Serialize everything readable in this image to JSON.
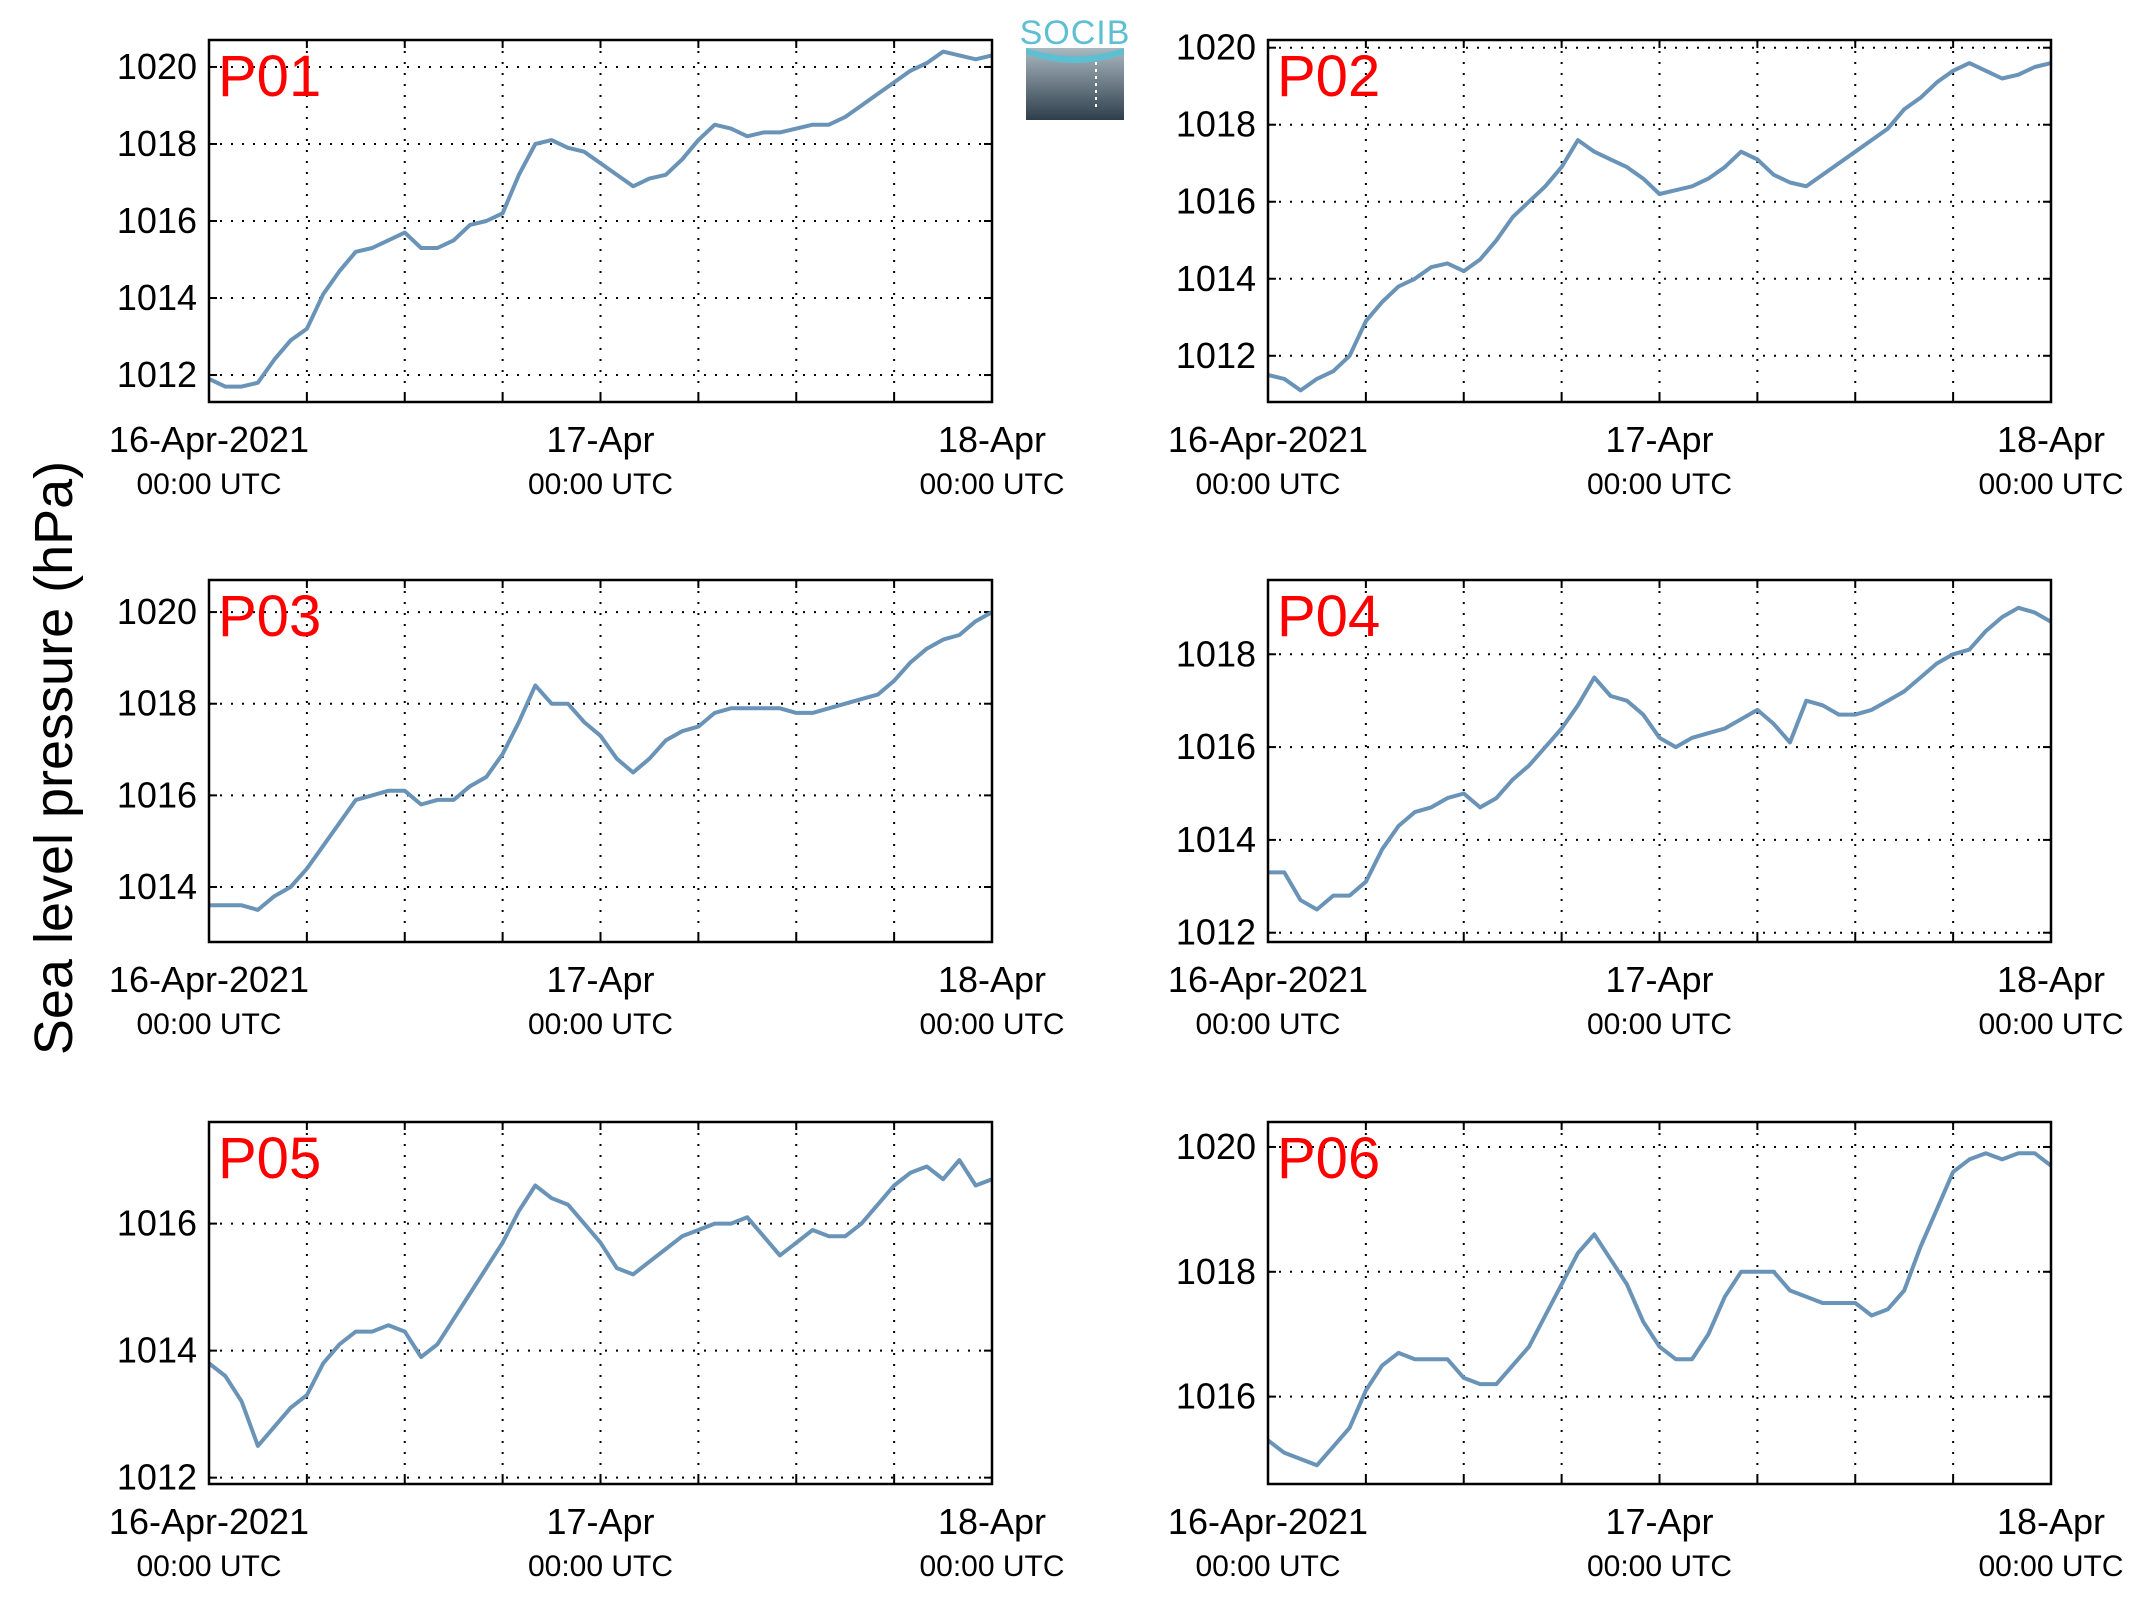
{
  "figure": {
    "ylabel": "Sea level pressure (hPa)",
    "logo_text": "SOCIB",
    "line_color": "#6a93b8",
    "panel_label_color": "#ff0000"
  },
  "x_tick_labels": [
    {
      "main": "16-Apr-2021",
      "sub": "00:00 UTC"
    },
    {
      "main": "17-Apr",
      "sub": "00:00 UTC"
    },
    {
      "main": "18-Apr",
      "sub": "00:00 UTC"
    }
  ],
  "chart_data": [
    {
      "type": "line",
      "label": "P01",
      "xlim_hours": [
        0,
        48
      ],
      "ylim": [
        1011.3,
        1020.7
      ],
      "yticks": [
        1012,
        1014,
        1016,
        1018,
        1020
      ],
      "grid": "dotted",
      "x_hours": [
        0,
        1,
        2,
        3,
        4,
        5,
        6,
        7,
        8,
        9,
        10,
        11,
        12,
        13,
        14,
        15,
        16,
        17,
        18,
        19,
        20,
        21,
        22,
        23,
        24,
        25,
        26,
        27,
        28,
        29,
        30,
        31,
        32,
        33,
        34,
        35,
        36,
        37,
        38,
        39,
        40,
        41,
        42,
        43,
        44,
        45,
        46,
        47,
        48
      ],
      "values": [
        1011.9,
        1011.7,
        1011.7,
        1011.8,
        1012.4,
        1012.9,
        1013.2,
        1014.1,
        1014.7,
        1015.2,
        1015.3,
        1015.5,
        1015.7,
        1015.3,
        1015.3,
        1015.5,
        1015.9,
        1016.0,
        1016.2,
        1017.2,
        1018.0,
        1018.1,
        1017.9,
        1017.8,
        1017.5,
        1017.2,
        1016.9,
        1017.1,
        1017.2,
        1017.6,
        1018.1,
        1018.5,
        1018.4,
        1018.2,
        1018.3,
        1018.3,
        1018.4,
        1018.5,
        1018.5,
        1018.7,
        1019.0,
        1019.3,
        1019.6,
        1019.9,
        1020.1,
        1020.4,
        1020.3,
        1020.2,
        1020.3
      ]
    },
    {
      "type": "line",
      "label": "P02",
      "xlim_hours": [
        0,
        48
      ],
      "ylim": [
        1010.8,
        1020.2
      ],
      "yticks": [
        1012,
        1014,
        1016,
        1018,
        1020
      ],
      "grid": "dotted",
      "x_hours": [
        0,
        1,
        2,
        3,
        4,
        5,
        6,
        7,
        8,
        9,
        10,
        11,
        12,
        13,
        14,
        15,
        16,
        17,
        18,
        19,
        20,
        21,
        22,
        23,
        24,
        25,
        26,
        27,
        28,
        29,
        30,
        31,
        32,
        33,
        34,
        35,
        36,
        37,
        38,
        39,
        40,
        41,
        42,
        43,
        44,
        45,
        46,
        47,
        48
      ],
      "values": [
        1011.5,
        1011.4,
        1011.1,
        1011.4,
        1011.6,
        1012.0,
        1012.9,
        1013.4,
        1013.8,
        1014.0,
        1014.3,
        1014.4,
        1014.2,
        1014.5,
        1015.0,
        1015.6,
        1016.0,
        1016.4,
        1016.9,
        1017.6,
        1017.3,
        1017.1,
        1016.9,
        1016.6,
        1016.2,
        1016.3,
        1016.4,
        1016.6,
        1016.9,
        1017.3,
        1017.1,
        1016.7,
        1016.5,
        1016.4,
        1016.7,
        1017.0,
        1017.3,
        1017.6,
        1017.9,
        1018.4,
        1018.7,
        1019.1,
        1019.4,
        1019.6,
        1019.4,
        1019.2,
        1019.3,
        1019.5,
        1019.6
      ]
    },
    {
      "type": "line",
      "label": "P03",
      "xlim_hours": [
        0,
        48
      ],
      "ylim": [
        1012.8,
        1020.7
      ],
      "yticks": [
        1014,
        1016,
        1018,
        1020
      ],
      "grid": "dotted",
      "x_hours": [
        0,
        1,
        2,
        3,
        4,
        5,
        6,
        7,
        8,
        9,
        10,
        11,
        12,
        13,
        14,
        15,
        16,
        17,
        18,
        19,
        20,
        21,
        22,
        23,
        24,
        25,
        26,
        27,
        28,
        29,
        30,
        31,
        32,
        33,
        34,
        35,
        36,
        37,
        38,
        39,
        40,
        41,
        42,
        43,
        44,
        45,
        46,
        47,
        48
      ],
      "values": [
        1013.6,
        1013.6,
        1013.6,
        1013.5,
        1013.8,
        1014.0,
        1014.4,
        1014.9,
        1015.4,
        1015.9,
        1016.0,
        1016.1,
        1016.1,
        1015.8,
        1015.9,
        1015.9,
        1016.2,
        1016.4,
        1016.9,
        1017.6,
        1018.4,
        1018.0,
        1018.0,
        1017.6,
        1017.3,
        1016.8,
        1016.5,
        1016.8,
        1017.2,
        1017.4,
        1017.5,
        1017.8,
        1017.9,
        1017.9,
        1017.9,
        1017.9,
        1017.8,
        1017.8,
        1017.9,
        1018.0,
        1018.1,
        1018.2,
        1018.5,
        1018.9,
        1019.2,
        1019.4,
        1019.5,
        1019.8,
        1020.0
      ]
    },
    {
      "type": "line",
      "label": "P04",
      "xlim_hours": [
        0,
        48
      ],
      "ylim": [
        1011.8,
        1019.6
      ],
      "yticks": [
        1012,
        1014,
        1016,
        1018
      ],
      "grid": "dotted",
      "x_hours": [
        0,
        1,
        2,
        3,
        4,
        5,
        6,
        7,
        8,
        9,
        10,
        11,
        12,
        13,
        14,
        15,
        16,
        17,
        18,
        19,
        20,
        21,
        22,
        23,
        24,
        25,
        26,
        27,
        28,
        29,
        30,
        31,
        32,
        33,
        34,
        35,
        36,
        37,
        38,
        39,
        40,
        41,
        42,
        43,
        44,
        45,
        46,
        47,
        48
      ],
      "values": [
        1013.3,
        1013.3,
        1012.7,
        1012.5,
        1012.8,
        1012.8,
        1013.1,
        1013.8,
        1014.3,
        1014.6,
        1014.7,
        1014.9,
        1015.0,
        1014.7,
        1014.9,
        1015.3,
        1015.6,
        1016.0,
        1016.4,
        1016.9,
        1017.5,
        1017.1,
        1017.0,
        1016.7,
        1016.2,
        1016.0,
        1016.2,
        1016.3,
        1016.4,
        1016.6,
        1016.8,
        1016.5,
        1016.1,
        1017.0,
        1016.9,
        1016.7,
        1016.7,
        1016.8,
        1017.0,
        1017.2,
        1017.5,
        1017.8,
        1018.0,
        1018.1,
        1018.5,
        1018.8,
        1019.0,
        1018.9,
        1018.7
      ]
    },
    {
      "type": "line",
      "label": "P05",
      "xlim_hours": [
        0,
        48
      ],
      "ylim": [
        1011.9,
        1017.6
      ],
      "yticks": [
        1012,
        1014,
        1016
      ],
      "grid": "dotted",
      "x_hours": [
        0,
        1,
        2,
        3,
        4,
        5,
        6,
        7,
        8,
        9,
        10,
        11,
        12,
        13,
        14,
        15,
        16,
        17,
        18,
        19,
        20,
        21,
        22,
        23,
        24,
        25,
        26,
        27,
        28,
        29,
        30,
        31,
        32,
        33,
        34,
        35,
        36,
        37,
        38,
        39,
        40,
        41,
        42,
        43,
        44,
        45,
        46,
        47,
        48
      ],
      "values": [
        1013.8,
        1013.6,
        1013.2,
        1012.5,
        1012.8,
        1013.1,
        1013.3,
        1013.8,
        1014.1,
        1014.3,
        1014.3,
        1014.4,
        1014.3,
        1013.9,
        1014.1,
        1014.5,
        1014.9,
        1015.3,
        1015.7,
        1016.2,
        1016.6,
        1016.4,
        1016.3,
        1016.0,
        1015.7,
        1015.3,
        1015.2,
        1015.4,
        1015.6,
        1015.8,
        1015.9,
        1016.0,
        1016.0,
        1016.1,
        1015.8,
        1015.5,
        1015.7,
        1015.9,
        1015.8,
        1015.8,
        1016.0,
        1016.3,
        1016.6,
        1016.8,
        1016.9,
        1016.7,
        1017.0,
        1016.6,
        1016.7
      ]
    },
    {
      "type": "line",
      "label": "P06",
      "xlim_hours": [
        0,
        48
      ],
      "ylim": [
        1014.6,
        1020.4
      ],
      "yticks": [
        1016,
        1018,
        1020
      ],
      "grid": "dotted",
      "x_hours": [
        0,
        1,
        2,
        3,
        4,
        5,
        6,
        7,
        8,
        9,
        10,
        11,
        12,
        13,
        14,
        15,
        16,
        17,
        18,
        19,
        20,
        21,
        22,
        23,
        24,
        25,
        26,
        27,
        28,
        29,
        30,
        31,
        32,
        33,
        34,
        35,
        36,
        37,
        38,
        39,
        40,
        41,
        42,
        43,
        44,
        45,
        46,
        47,
        48
      ],
      "values": [
        1015.3,
        1015.1,
        1015.0,
        1014.9,
        1015.2,
        1015.5,
        1016.1,
        1016.5,
        1016.7,
        1016.6,
        1016.6,
        1016.6,
        1016.3,
        1016.2,
        1016.2,
        1016.5,
        1016.8,
        1017.3,
        1017.8,
        1018.3,
        1018.6,
        1018.2,
        1017.8,
        1017.2,
        1016.8,
        1016.6,
        1016.6,
        1017.0,
        1017.6,
        1018.0,
        1018.0,
        1018.0,
        1017.7,
        1017.6,
        1017.5,
        1017.5,
        1017.5,
        1017.3,
        1017.4,
        1017.7,
        1018.4,
        1019.0,
        1019.6,
        1019.8,
        1019.9,
        1019.8,
        1019.9,
        1019.9,
        1019.7
      ]
    }
  ]
}
